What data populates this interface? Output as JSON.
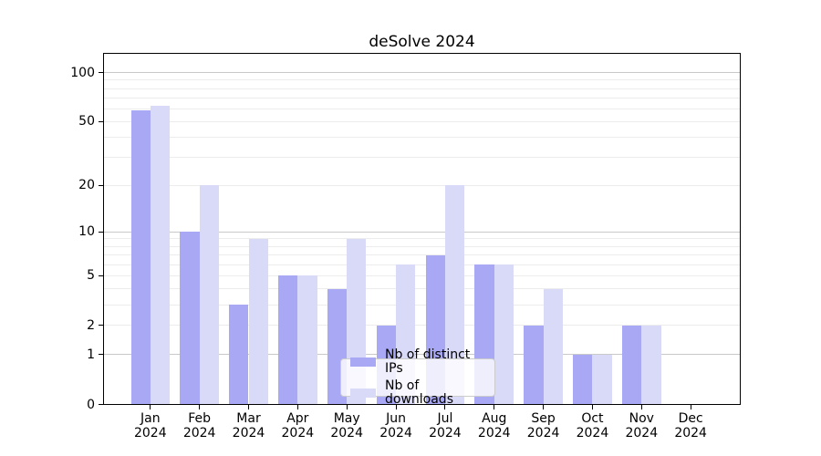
{
  "chart_data": {
    "type": "bar",
    "title": "deSolve 2024",
    "y_scale": "log10(1+y)",
    "y_top_value": 131,
    "y_tick_values": [
      0,
      1,
      2,
      5,
      10,
      20,
      50,
      100
    ],
    "grid_minor_values": [
      2,
      3,
      4,
      5,
      6,
      7,
      8,
      9,
      20,
      30,
      40,
      50,
      60,
      70,
      80,
      90
    ],
    "grid_major_values": [
      1,
      10,
      100
    ],
    "categories": [
      "Jan",
      "Feb",
      "Mar",
      "Apr",
      "May",
      "Jun",
      "Jul",
      "Aug",
      "Sep",
      "Oct",
      "Nov",
      "Dec"
    ],
    "year_label": "2024",
    "series": [
      {
        "name": "Nb of distinct IPs",
        "color": "#a8a8f5",
        "values": [
          59,
          10,
          3,
          5,
          4,
          2,
          7,
          6,
          2,
          1,
          2,
          0
        ]
      },
      {
        "name": "Nb of downloads",
        "color": "#d9d9f8",
        "values": [
          63,
          20,
          9,
          5,
          9,
          6,
          20,
          6,
          4,
          1,
          2,
          0
        ]
      }
    ],
    "legend_position": "lower center",
    "colors": {
      "grid_minor": "#ececec",
      "grid_major": "#c9c9c9",
      "spine": "#000000",
      "background": "#ffffff",
      "text": "#000000"
    }
  }
}
